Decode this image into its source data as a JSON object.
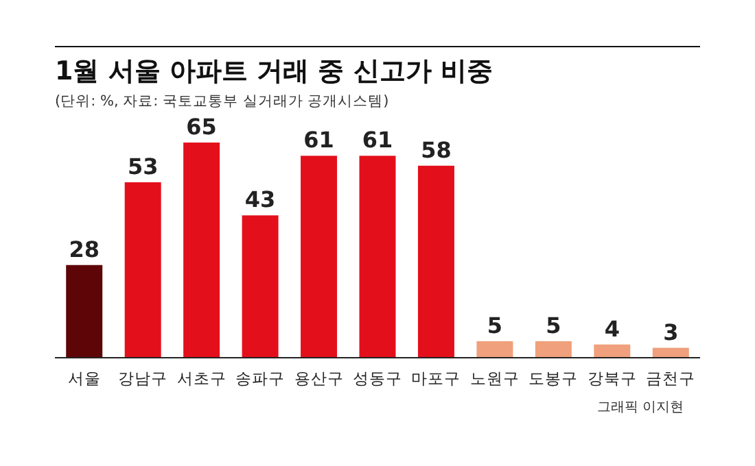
{
  "chart_data": {
    "type": "bar",
    "title": "1월 서울 아파트 거래 중 신고가 비중",
    "subtitle": "(단위: %, 자료: 국토교통부 실거래가 공개시스템)",
    "categories": [
      "서울",
      "강남구",
      "서초구",
      "송파구",
      "용산구",
      "성동구",
      "마포구",
      "노원구",
      "도봉구",
      "강북구",
      "금천구"
    ],
    "values": [
      28,
      53,
      65,
      43,
      61,
      61,
      58,
      5,
      5,
      4,
      3
    ],
    "colors": [
      "#5e0508",
      "#e3101c",
      "#e3101c",
      "#e3101c",
      "#e3101c",
      "#e3101c",
      "#e3101c",
      "#f0a07c",
      "#f0a07c",
      "#f0a07c",
      "#f0a07c"
    ],
    "data_labels": true,
    "grid": false,
    "annotations": [
      "그래픽 이지현"
    ]
  }
}
